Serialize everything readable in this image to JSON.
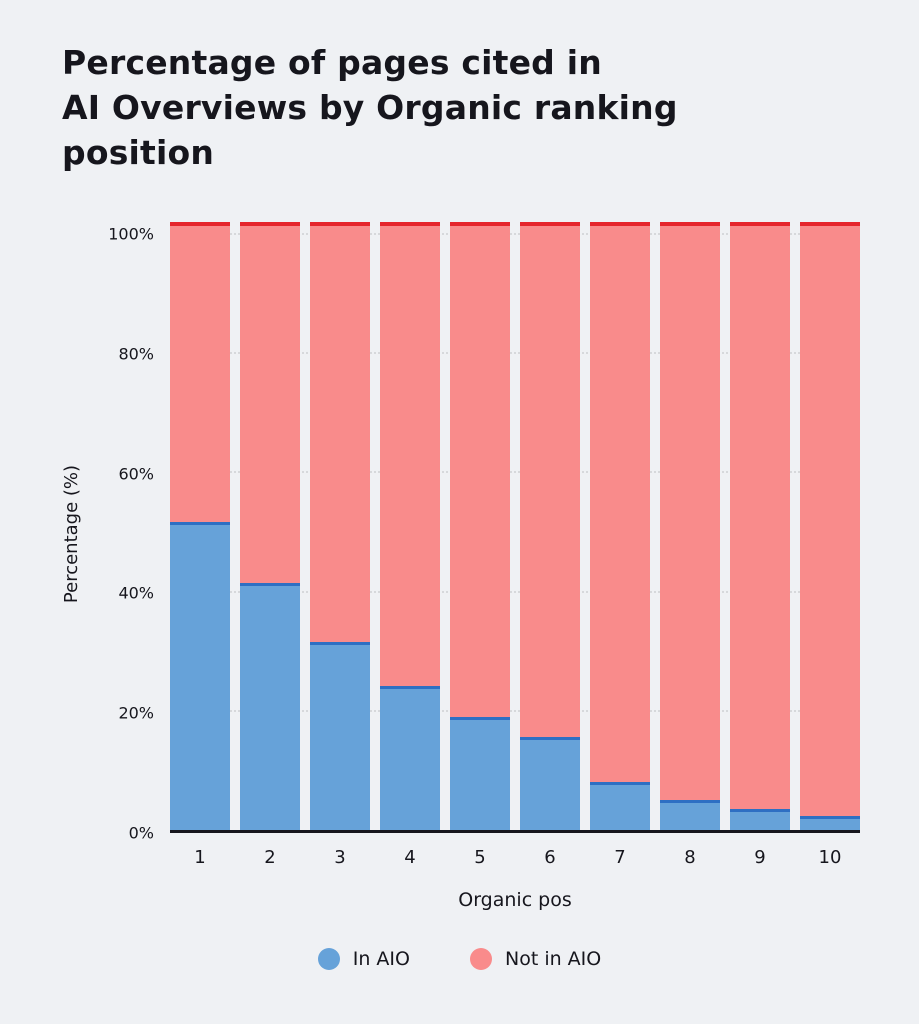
{
  "chart_data": {
    "type": "bar",
    "stacked": true,
    "title": "Percentage of pages cited in AI Overviews by Organic ranking position",
    "title_lines": [
      "Percentage of pages cited in",
      "AI Overviews by Organic ranking",
      "position"
    ],
    "categories": [
      "1",
      "2",
      "3",
      "4",
      "5",
      "6",
      "7",
      "8",
      "9",
      "10"
    ],
    "series": [
      {
        "name": "In AIO",
        "color": "#66a2d9",
        "edge_color": "#2e6fc3",
        "values": [
          51.6,
          41.5,
          31.6,
          24.1,
          19.0,
          15.6,
          8.0,
          5.0,
          3.5,
          2.3
        ]
      },
      {
        "name": "Not in AIO",
        "color": "#f98b8b",
        "edge_color": "#e5252c",
        "values": [
          48.4,
          58.5,
          68.4,
          75.9,
          81.0,
          84.4,
          92.0,
          95.0,
          96.5,
          97.7
        ]
      }
    ],
    "xlabel": "Organic pos",
    "ylabel": "Percentage (%)",
    "yticks": [
      "0%",
      "20%",
      "40%",
      "60%",
      "80%",
      "100%"
    ],
    "ylim": [
      0,
      100
    ],
    "grid": "horizontal-dotted",
    "legend_position": "bottom"
  },
  "colors": {
    "background": "#eff1f4",
    "text": "#16161d",
    "axis": "#16161d",
    "gridline": "#d6d8db"
  }
}
